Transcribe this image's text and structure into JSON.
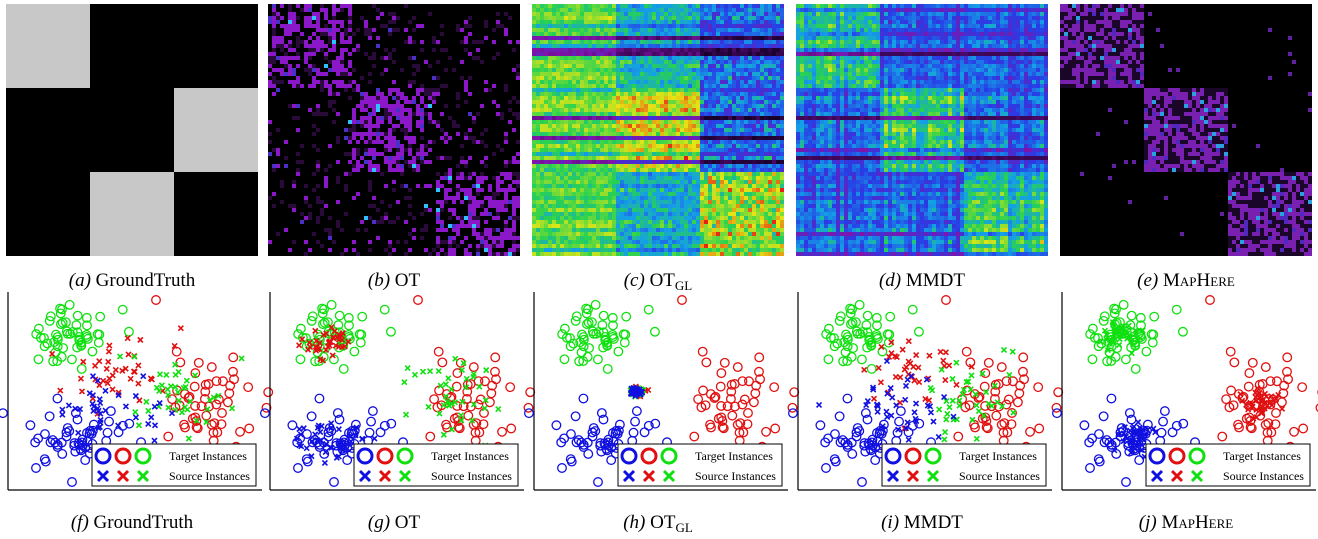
{
  "colors": {
    "class_blue": "#1010e0",
    "class_red": "#e01010",
    "class_green": "#10e010",
    "groundtruth_block": "#c8c8c8",
    "background": "#000000"
  },
  "legend": {
    "target_label": "Target Instances",
    "source_label": "Source Instances"
  },
  "captions": {
    "top": [
      {
        "letter": "(a)",
        "name": "GroundTruth",
        "sub": "",
        "smallcaps": false
      },
      {
        "letter": "(b)",
        "name": "OT",
        "sub": "",
        "smallcaps": false
      },
      {
        "letter": "(c)",
        "name": "OT",
        "sub": "GL",
        "smallcaps": false
      },
      {
        "letter": "(d)",
        "name": "MMDT",
        "sub": "",
        "smallcaps": false
      },
      {
        "letter": "(e)",
        "name": "MapHere",
        "sub": "",
        "smallcaps": true
      }
    ],
    "bottom": [
      {
        "letter": "(f)",
        "name": "GroundTruth",
        "sub": "",
        "smallcaps": false
      },
      {
        "letter": "(g)",
        "name": "OT",
        "sub": "",
        "smallcaps": false
      },
      {
        "letter": "(h)",
        "name": "OT",
        "sub": "GL",
        "smallcaps": false
      },
      {
        "letter": "(i)",
        "name": "MMDT",
        "sub": "",
        "smallcaps": false
      },
      {
        "letter": "(j)",
        "name": "MapHere",
        "sub": "",
        "smallcaps": true
      }
    ]
  },
  "chart_data": [
    {
      "type": "heatmap",
      "panel": "a",
      "pattern": "groundtruth",
      "blocks": 3,
      "grid": false
    },
    {
      "type": "heatmap",
      "panel": "b",
      "pattern": "ot",
      "blocks": 3,
      "grid": false
    },
    {
      "type": "heatmap",
      "panel": "c",
      "pattern": "otgl",
      "blocks": 3,
      "grid": false
    },
    {
      "type": "heatmap",
      "panel": "d",
      "pattern": "mmdt",
      "blocks": 3,
      "grid": false
    },
    {
      "type": "heatmap",
      "panel": "e",
      "pattern": "maphere",
      "blocks": 3,
      "grid": false
    },
    {
      "type": "scatter",
      "panel": "f",
      "mode": "groundtruth",
      "legend": "bottom-right",
      "series": [
        "Target Instances",
        "Source Instances"
      ],
      "classes": [
        "blue",
        "red",
        "green"
      ]
    },
    {
      "type": "scatter",
      "panel": "g",
      "mode": "ot",
      "legend": "bottom-right",
      "series": [
        "Target Instances",
        "Source Instances"
      ],
      "classes": [
        "blue",
        "red",
        "green"
      ]
    },
    {
      "type": "scatter",
      "panel": "h",
      "mode": "otgl",
      "legend": "bottom-right",
      "series": [
        "Target Instances",
        "Source Instances"
      ],
      "classes": [
        "blue",
        "red",
        "green"
      ]
    },
    {
      "type": "scatter",
      "panel": "i",
      "mode": "mmdt",
      "legend": "bottom-right",
      "series": [
        "Target Instances",
        "Source Instances"
      ],
      "classes": [
        "blue",
        "red",
        "green"
      ]
    },
    {
      "type": "scatter",
      "panel": "j",
      "mode": "maphere",
      "legend": "bottom-right",
      "series": [
        "Target Instances",
        "Source Instances"
      ],
      "classes": [
        "blue",
        "red",
        "green"
      ]
    }
  ]
}
